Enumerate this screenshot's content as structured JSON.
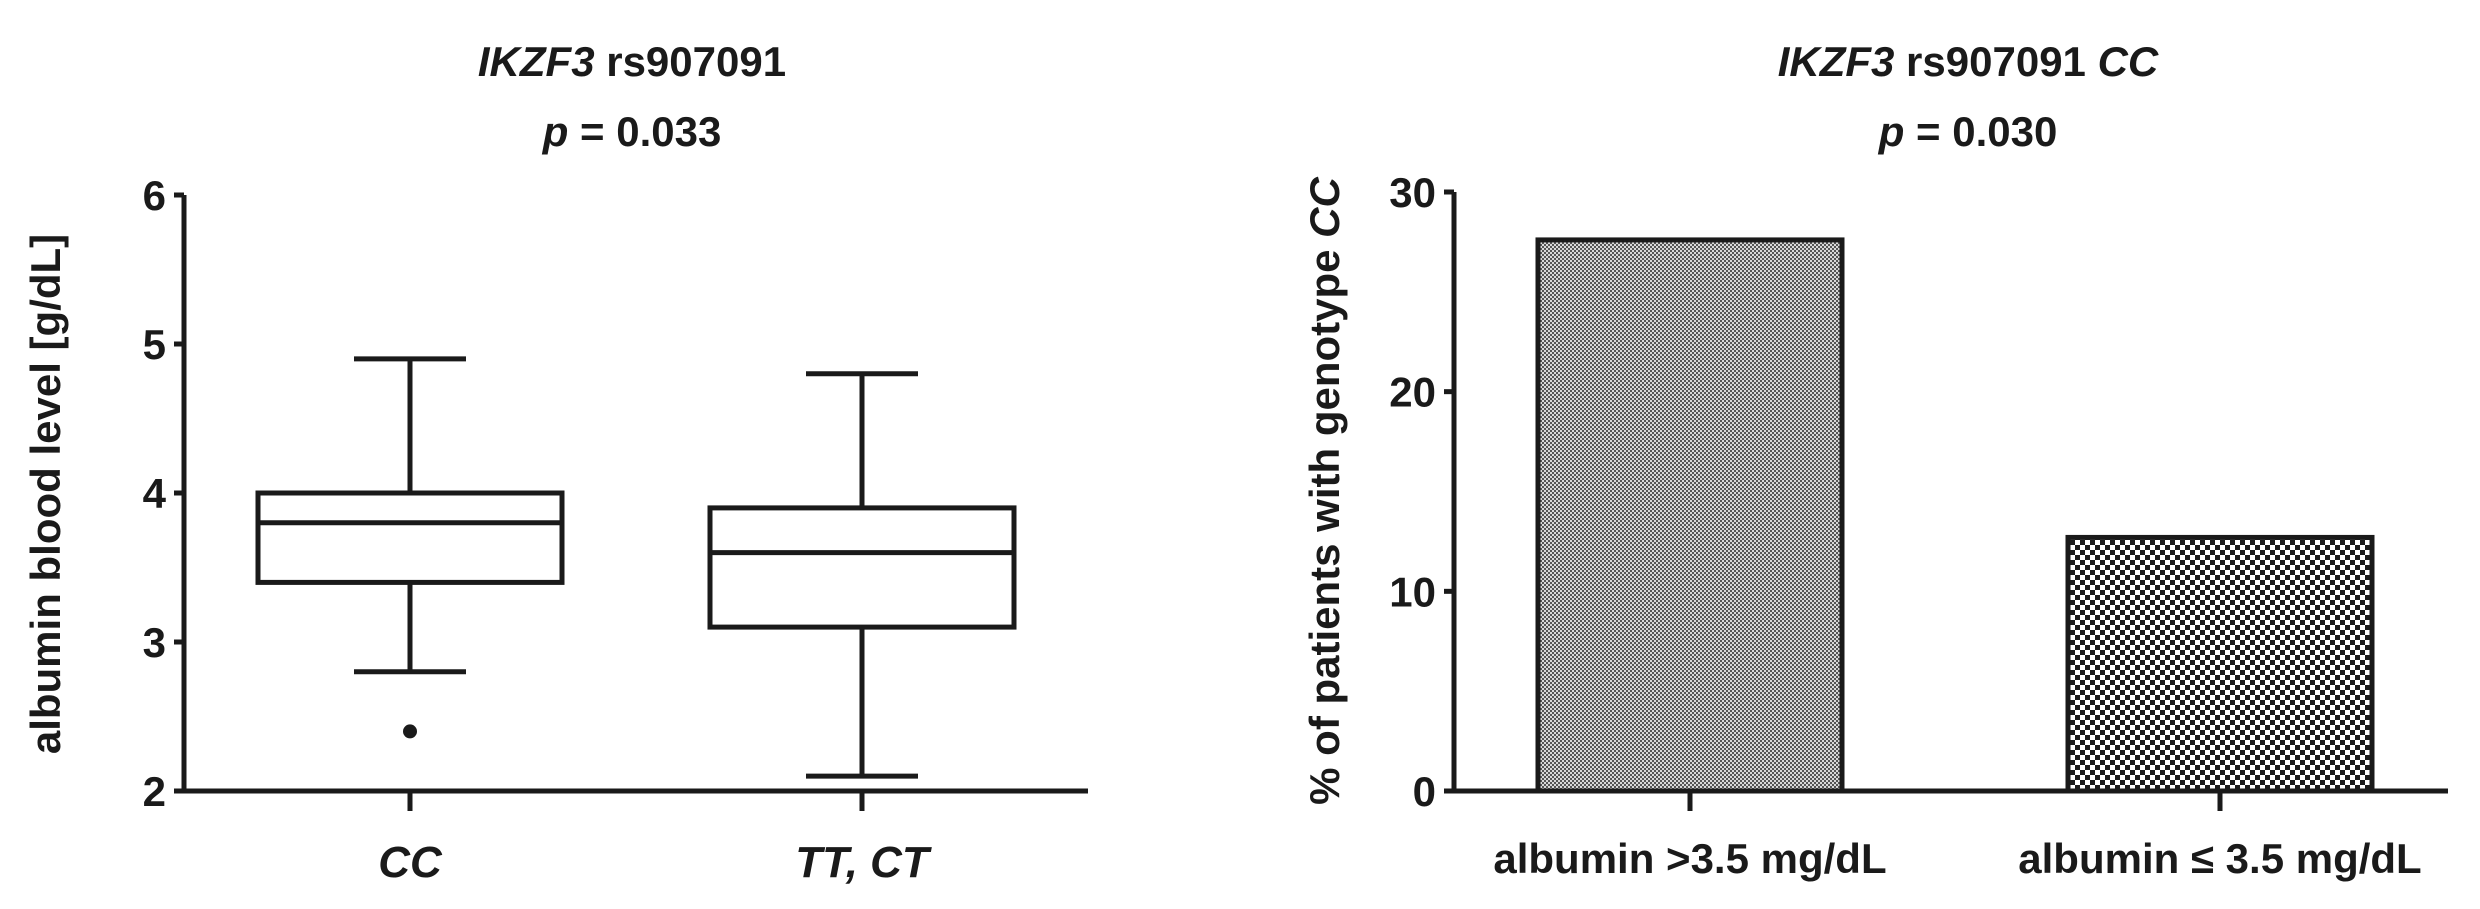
{
  "chart_data": [
    {
      "type": "box",
      "title_italic": "IKZF3",
      "title_rest": " rs907091",
      "subtitle_p": "p",
      "subtitle_rest": " = 0.033",
      "ylabel": "albumin blood level [g/dL]",
      "ylim": [
        2,
        6
      ],
      "yticks": [
        2,
        3,
        4,
        5,
        6
      ],
      "categories": [
        "CC",
        "TT, CT"
      ],
      "boxes": [
        {
          "name": "CC",
          "min": 2.8,
          "q1": 3.4,
          "median": 3.8,
          "q3": 4.0,
          "max": 4.9,
          "outliers": [
            2.4
          ]
        },
        {
          "name": "TT, CT",
          "min": 2.1,
          "q1": 3.1,
          "median": 3.6,
          "q3": 3.9,
          "max": 4.8,
          "outliers": []
        }
      ],
      "grid": false
    },
    {
      "type": "bar",
      "title_italic": "IKZF3",
      "title_rest": " rs907091 ",
      "title_italic2": "CC",
      "subtitle_p": "p",
      "subtitle_rest": " = 0.030",
      "ylabel": "% of patients with genotype ",
      "ylabel_italic": "CC",
      "ylim": [
        0,
        30
      ],
      "yticks": [
        0,
        10,
        20,
        30
      ],
      "categories": [
        "albumin >3.5 mg/dL",
        "albumin ≤ 3.5 mg/dL"
      ],
      "values": [
        27.6,
        12.7
      ],
      "grid": false
    }
  ]
}
